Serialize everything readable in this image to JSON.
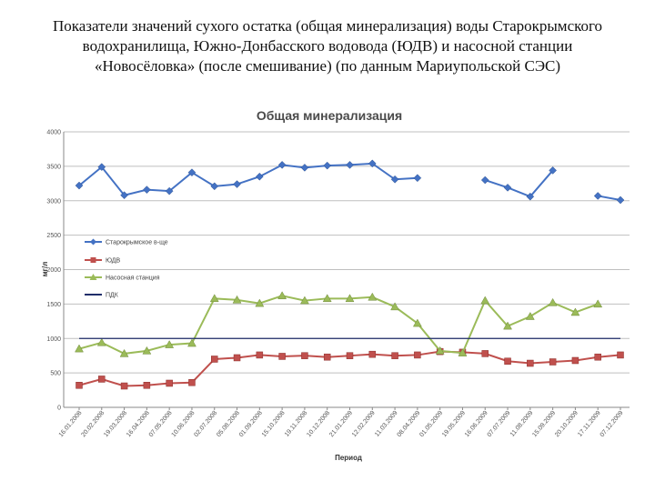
{
  "slide": {
    "title_lines": [
      "Показатели значений сухого остатка (общая минерализация) воды Старокрымского",
      "водохранилища, Южно-Донбасского водовода (ЮДВ) и насосной станции",
      "«Новосёловка» (после смешивание) (по данным Мариупольской СЭС)"
    ]
  },
  "chart_data": {
    "type": "line",
    "title": "Общая минерализация",
    "xlabel": "Период",
    "ylabel": "мг/л",
    "ylim": [
      0,
      4000
    ],
    "yticks": [
      "0",
      "500",
      "1000",
      "1500",
      "2000",
      "2500",
      "3000",
      "3500",
      "4000"
    ],
    "categories": [
      "16.01.2008",
      "20.02.2008",
      "19.03.2008",
      "16.04.2008",
      "07.05.2008",
      "10.06.2008",
      "02.07.2008",
      "05.08.2008",
      "01.09.2008",
      "15.10.2008",
      "19.11.2008",
      "10.12.2008",
      "21.01.2009",
      "12.02.2009",
      "11.03.2009",
      "08.04.2009",
      "01.05.2009",
      "19.05.2009",
      "16.06.2009",
      "07.07.2009",
      "11.08.2009",
      "15.09.2009",
      "20.10.2009",
      "17.11.2009",
      "07.12.2009"
    ],
    "series": [
      {
        "name": "Старокрымское в-ще",
        "color": "#4472c4",
        "marker": "diamond",
        "values": [
          3220,
          3490,
          3080,
          3160,
          3140,
          3410,
          3210,
          3240,
          3350,
          3520,
          3480,
          3510,
          3520,
          3540,
          3310,
          3330,
          null,
          null,
          3300,
          3190,
          3060,
          3440,
          null,
          3070,
          3010
        ]
      },
      {
        "name": "ЮДВ",
        "color": "#c0504d",
        "marker": "square",
        "values": [
          320,
          410,
          310,
          320,
          350,
          360,
          700,
          720,
          760,
          740,
          750,
          730,
          750,
          770,
          750,
          760,
          810,
          800,
          780,
          670,
          640,
          660,
          680,
          730,
          760
        ]
      },
      {
        "name": "Насосная станция",
        "color": "#9bbb59",
        "marker": "triangle",
        "values": [
          850,
          940,
          780,
          820,
          910,
          930,
          1580,
          1560,
          1510,
          1620,
          1550,
          1580,
          1580,
          1600,
          1460,
          1220,
          820,
          790,
          1550,
          1180,
          1320,
          1520,
          1380,
          1500,
          null
        ]
      },
      {
        "name": "ПДК",
        "color": "#1f2d6a",
        "marker": "none",
        "constant": 1000
      }
    ]
  }
}
